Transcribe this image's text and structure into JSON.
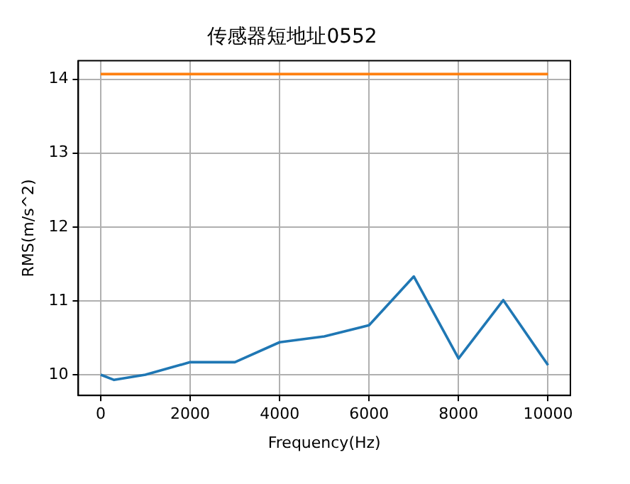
{
  "chart_data": {
    "type": "line",
    "title": "传感器短地址0552",
    "xlabel": "Frequency(Hz)",
    "ylabel": "RMS(m/s^2)",
    "series": [
      {
        "x": [
          0,
          300,
          1000,
          2000,
          3000,
          4000,
          5000,
          6000,
          7000,
          8000,
          9000,
          10000
        ],
        "values": [
          10.0,
          9.93,
          10.0,
          10.17,
          10.17,
          10.44,
          10.52,
          10.67,
          11.33,
          10.22,
          11.01,
          10.13
        ],
        "color": "#1f77b4"
      },
      {
        "x": [
          0,
          10000
        ],
        "values": [
          14.07,
          14.07
        ],
        "color": "#ff7f0e"
      }
    ],
    "xlim": [
      -500,
      10500
    ],
    "xticks": [
      0,
      2000,
      4000,
      6000,
      8000,
      10000
    ],
    "ylim": [
      9.72,
      14.25
    ],
    "yticks": [
      10,
      11,
      12,
      13,
      14
    ],
    "grid": true,
    "marker": "none",
    "line_style": "solid"
  }
}
